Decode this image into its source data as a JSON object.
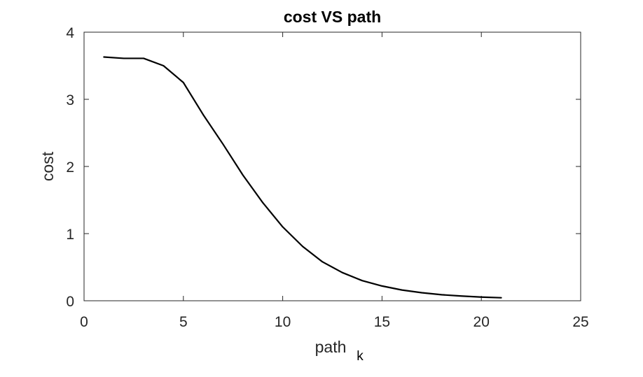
{
  "chart_data": {
    "type": "line",
    "title": "cost VS path",
    "xlabel": "path",
    "xlabel_subscript": "k",
    "ylabel": "cost",
    "xlim": [
      0,
      25
    ],
    "ylim": [
      0,
      4
    ],
    "xticks": [
      0,
      5,
      10,
      15,
      20,
      25
    ],
    "yticks": [
      0,
      1,
      2,
      3,
      4
    ],
    "grid": false,
    "series": [
      {
        "name": "cost",
        "color": "#000000",
        "x": [
          1,
          2,
          3,
          4,
          5,
          6,
          7,
          8,
          9,
          10,
          11,
          12,
          13,
          14,
          15,
          16,
          17,
          18,
          19,
          20,
          21
        ],
        "y": [
          3.63,
          3.61,
          3.61,
          3.5,
          3.25,
          2.77,
          2.33,
          1.87,
          1.46,
          1.1,
          0.81,
          0.58,
          0.42,
          0.3,
          0.22,
          0.16,
          0.12,
          0.09,
          0.07,
          0.055,
          0.045
        ]
      }
    ]
  }
}
